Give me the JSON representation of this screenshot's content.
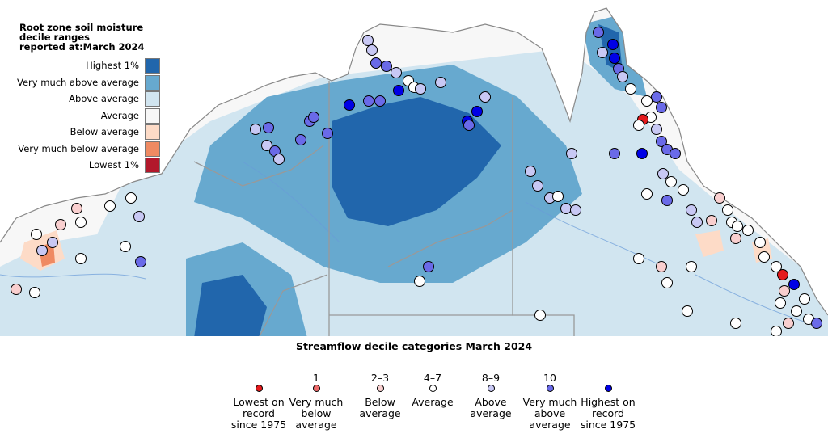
{
  "soil_legend": {
    "title": "Root zone soil moisture\ndecile ranges\nreported at:March 2024",
    "items": [
      {
        "label": "Highest 1%",
        "color": "#2166ac"
      },
      {
        "label": "Very much above average",
        "color": "#67a9cf"
      },
      {
        "label": "Above average",
        "color": "#d1e5f0"
      },
      {
        "label": "Average",
        "color": "#f7f7f7"
      },
      {
        "label": "Below average",
        "color": "#fddbc7"
      },
      {
        "label": "Very much below average",
        "color": "#ef8a62"
      },
      {
        "label": "Lowest 1%",
        "color": "#b2182b"
      }
    ]
  },
  "streamflow_legend": {
    "title": "Streamflow decile categories\nMarch 2024",
    "items": [
      {
        "decile": "",
        "label": "Lowest on\nrecord\nsince 1975",
        "color": "#e41a1c"
      },
      {
        "decile": "1",
        "label": "Very much\nbelow\naverage",
        "color": "#ee6a6a"
      },
      {
        "decile": "2–3",
        "label": "Below\naverage",
        "color": "#f9cfcf"
      },
      {
        "decile": "4–7",
        "label": "Average",
        "color": "#ffffff"
      },
      {
        "decile": "8–9",
        "label": "Above\naverage",
        "color": "#c8c8f4"
      },
      {
        "decile": "10",
        "label": "Very much\nabove\naverage",
        "color": "#6a6ae8"
      },
      {
        "decile": "",
        "label": "Highest on\nrecord\nsince 1975",
        "color": "#0000e6"
      }
    ]
  },
  "colors": {
    "water": "#ffffff",
    "coast_outline": "#888888",
    "state_border": "#999999",
    "river": "#6a9bd8"
  }
}
